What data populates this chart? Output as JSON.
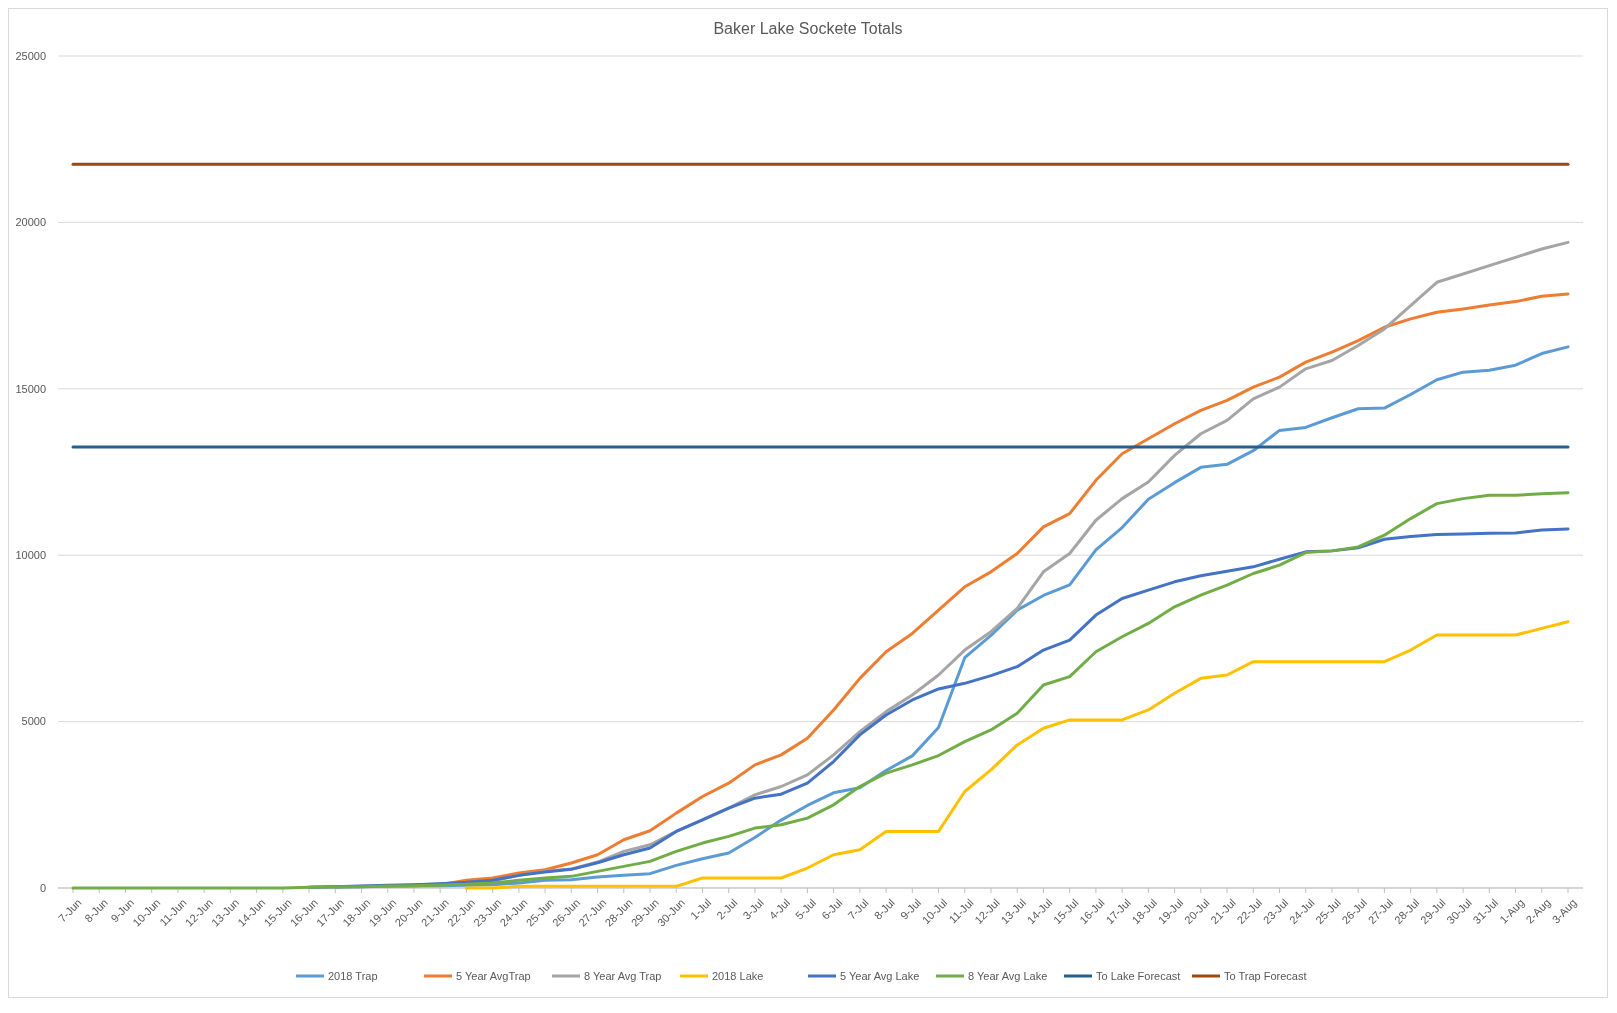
{
  "chart_data": {
    "type": "line",
    "title": "Baker Lake Sockete Totals",
    "categories": [
      "7-Jun",
      "8-Jun",
      "9-Jun",
      "10-Jun",
      "11-Jun",
      "12-Jun",
      "13-Jun",
      "14-Jun",
      "15-Jun",
      "16-Jun",
      "17-Jun",
      "18-Jun",
      "19-Jun",
      "20-Jun",
      "21-Jun",
      "22-Jun",
      "23-Jun",
      "24-Jun",
      "25-Jun",
      "26-Jun",
      "27-Jun",
      "28-Jun",
      "29-Jun",
      "30-Jun",
      "1-Jul",
      "2-Jul",
      "3-Jul",
      "4-Jul",
      "5-Jul",
      "6-Jul",
      "7-Jul",
      "8-Jul",
      "9-Jul",
      "10-Jul",
      "11-Jul",
      "12-Jul",
      "13-Jul",
      "14-Jul",
      "15-Jul",
      "16-Jul",
      "17-Jul",
      "18-Jul",
      "19-Jul",
      "20-Jul",
      "21-Jul",
      "22-Jul",
      "23-Jul",
      "24-Jul",
      "25-Jul",
      "26-Jul",
      "27-Jul",
      "28-Jul",
      "29-Jul",
      "30-Jul",
      "31-Jul",
      "1-Aug",
      "2-Aug",
      "3-Aug"
    ],
    "series": [
      {
        "name": "2018 Trap",
        "color": "#5b9bd5",
        "values": [
          null,
          null,
          null,
          null,
          null,
          null,
          null,
          null,
          null,
          null,
          30,
          40,
          50,
          60,
          70,
          80,
          100,
          150,
          230,
          250,
          330,
          380,
          430,
          680,
          880,
          1050,
          1520,
          2040,
          2480,
          2860,
          3010,
          3530,
          3970,
          4820,
          6920,
          7590,
          8350,
          8790,
          9110,
          10160,
          10830,
          11680,
          12180,
          12640,
          12730,
          13140,
          13750,
          13840,
          14130,
          14400,
          14420,
          14830,
          15270,
          15500,
          15560,
          15710,
          16060,
          16260
        ]
      },
      {
        "name": "5 Year AvgTrap",
        "color": "#ed7d31",
        "values": [
          null,
          null,
          null,
          null,
          null,
          null,
          null,
          null,
          null,
          null,
          null,
          null,
          null,
          80,
          100,
          230,
          300,
          450,
          550,
          750,
          1000,
          1450,
          1720,
          2250,
          2750,
          3150,
          3700,
          4000,
          4500,
          5350,
          6300,
          7100,
          7650,
          8350,
          9050,
          9500,
          10050,
          10850,
          11250,
          12250,
          13050,
          13500,
          13950,
          14350,
          14650,
          15050,
          15350,
          15800,
          16100,
          16450,
          16850,
          17100,
          17300,
          17400,
          17520,
          17620,
          17780,
          17850
        ]
      },
      {
        "name": "8 Year Avg Trap",
        "color": "#a5a5a5",
        "values": [
          null,
          null,
          null,
          null,
          null,
          null,
          null,
          null,
          null,
          20,
          40,
          50,
          70,
          90,
          120,
          150,
          220,
          380,
          500,
          570,
          780,
          1100,
          1300,
          1700,
          2050,
          2400,
          2800,
          3050,
          3400,
          4000,
          4700,
          5300,
          5800,
          6400,
          7150,
          7700,
          8400,
          9500,
          10050,
          11050,
          11700,
          12200,
          13000,
          13650,
          14050,
          14700,
          15050,
          15600,
          15850,
          16300,
          16800,
          17500,
          18200,
          18450,
          18700,
          18950,
          19200,
          19400
        ]
      },
      {
        "name": "2018 Lake",
        "color": "#ffc000",
        "values": [
          null,
          null,
          null,
          null,
          null,
          null,
          null,
          null,
          null,
          null,
          null,
          null,
          null,
          null,
          null,
          0,
          0,
          50,
          50,
          50,
          50,
          50,
          50,
          50,
          300,
          300,
          300,
          300,
          600,
          1000,
          1150,
          1700,
          1700,
          1700,
          2900,
          3550,
          4300,
          4800,
          5050,
          5050,
          5050,
          5350,
          5850,
          6300,
          6400,
          6800,
          6800,
          6800,
          6800,
          6800,
          6800,
          7150,
          7600,
          7600,
          7600,
          7600,
          7800,
          8000
        ]
      },
      {
        "name": "5 Year Avg Lake",
        "color": "#4472c4",
        "values": [
          null,
          null,
          null,
          null,
          null,
          null,
          null,
          null,
          null,
          20,
          40,
          60,
          80,
          100,
          130,
          170,
          230,
          380,
          480,
          560,
          760,
          1000,
          1200,
          1700,
          2050,
          2400,
          2700,
          2820,
          3150,
          3800,
          4600,
          5200,
          5650,
          5980,
          6150,
          6380,
          6650,
          7150,
          7450,
          8200,
          8700,
          8950,
          9200,
          9380,
          9520,
          9650,
          9880,
          10100,
          10130,
          10220,
          10480,
          10560,
          10620,
          10640,
          10660,
          10670,
          10760,
          10790
        ]
      },
      {
        "name": "8 Year Avg Lake",
        "color": "#70ad47",
        "values": [
          0,
          0,
          0,
          0,
          0,
          0,
          0,
          0,
          0,
          20,
          30,
          40,
          60,
          70,
          90,
          110,
          150,
          230,
          300,
          350,
          500,
          650,
          800,
          1100,
          1350,
          1550,
          1800,
          1900,
          2100,
          2500,
          3050,
          3450,
          3700,
          3980,
          4400,
          4750,
          5250,
          6100,
          6350,
          7100,
          7550,
          7950,
          8450,
          8800,
          9100,
          9450,
          9700,
          10080,
          10130,
          10250,
          10600,
          11100,
          11550,
          11700,
          11800,
          11800,
          11850,
          11880
        ]
      },
      {
        "name": "To Lake Forecast",
        "color": "#255e91",
        "values": [
          13250,
          13250,
          13250,
          13250,
          13250,
          13250,
          13250,
          13250,
          13250,
          13250,
          13250,
          13250,
          13250,
          13250,
          13250,
          13250,
          13250,
          13250,
          13250,
          13250,
          13250,
          13250,
          13250,
          13250,
          13250,
          13250,
          13250,
          13250,
          13250,
          13250,
          13250,
          13250,
          13250,
          13250,
          13250,
          13250,
          13250,
          13250,
          13250,
          13250,
          13250,
          13250,
          13250,
          13250,
          13250,
          13250,
          13250,
          13250,
          13250,
          13250,
          13250,
          13250,
          13250,
          13250,
          13250,
          13250,
          13250,
          13250
        ]
      },
      {
        "name": "To Trap Forecast",
        "color": "#9e480e",
        "values": [
          21750,
          21750,
          21750,
          21750,
          21750,
          21750,
          21750,
          21750,
          21750,
          21750,
          21750,
          21750,
          21750,
          21750,
          21750,
          21750,
          21750,
          21750,
          21750,
          21750,
          21750,
          21750,
          21750,
          21750,
          21750,
          21750,
          21750,
          21750,
          21750,
          21750,
          21750,
          21750,
          21750,
          21750,
          21750,
          21750,
          21750,
          21750,
          21750,
          21750,
          21750,
          21750,
          21750,
          21750,
          21750,
          21750,
          21750,
          21750,
          21750,
          21750,
          21750,
          21750,
          21750,
          21750,
          21750,
          21750,
          21750,
          21750
        ]
      }
    ],
    "ylim": [
      0,
      25000
    ],
    "yticks": [
      0,
      5000,
      10000,
      15000,
      20000,
      25000
    ],
    "grid": "y",
    "legend": "bottom"
  }
}
